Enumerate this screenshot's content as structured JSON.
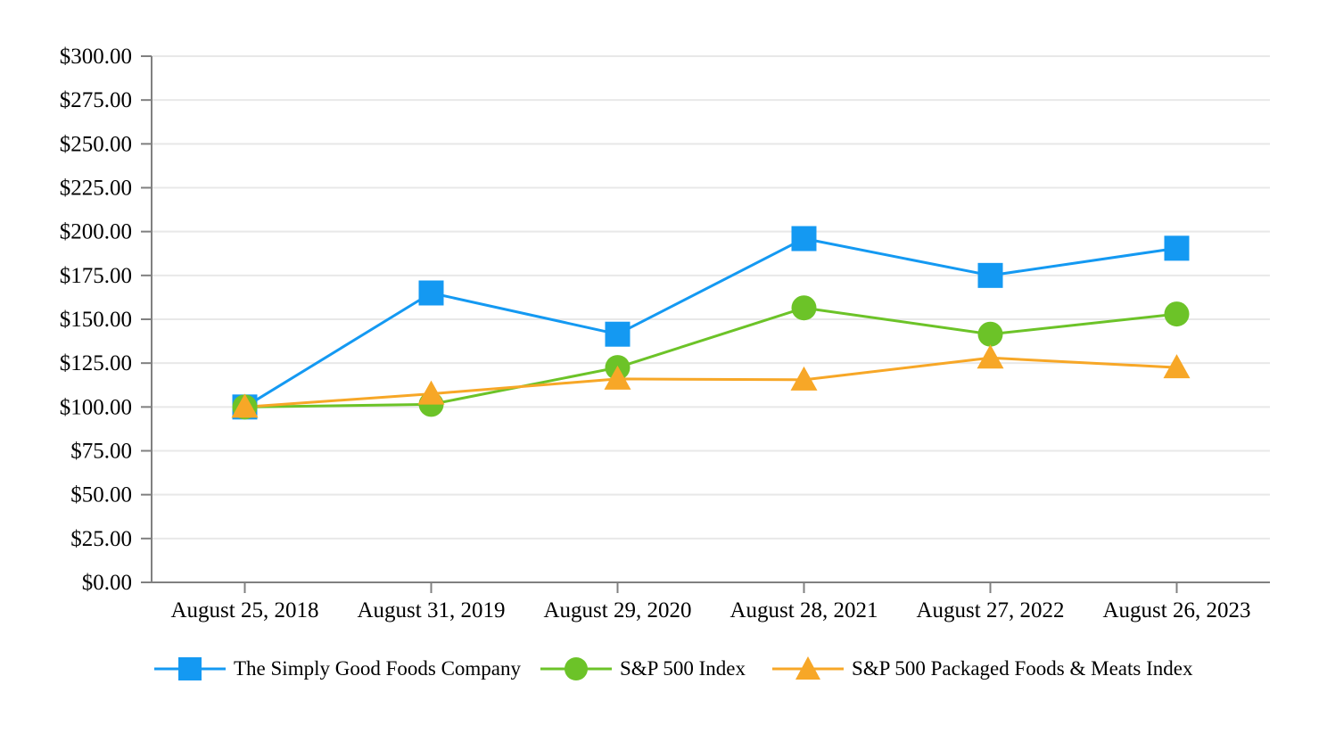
{
  "chart_data": {
    "type": "line",
    "title": "",
    "categories": [
      "August 25, 2018",
      "August 31, 2019",
      "August 29, 2020",
      "August 28, 2021",
      "August 27, 2022",
      "August 26, 2023"
    ],
    "series": [
      {
        "name": "The Simply Good Foods Company",
        "marker": "square",
        "color": "#1499F2",
        "values": [
          100.0,
          165.0,
          141.5,
          196.0,
          175.0,
          190.5
        ]
      },
      {
        "name": "S&P 500 Index",
        "marker": "circle",
        "color": "#6CC328",
        "values": [
          100.0,
          101.5,
          122.5,
          156.5,
          141.5,
          153.0
        ]
      },
      {
        "name": "S&P 500 Packaged Foods & Meats Index",
        "marker": "triangle",
        "color": "#F7A727",
        "values": [
          100.0,
          107.5,
          116.0,
          115.5,
          128.0,
          122.5
        ]
      }
    ],
    "y_axis": {
      "min": 0,
      "max": 300,
      "step": 25,
      "tick_labels": [
        "$300.00",
        "$275.00",
        "$250.00",
        "$225.00",
        "$200.00",
        "$175.00",
        "$150.00",
        "$125.00",
        "$100.00",
        "$75.00",
        "$50.00",
        "$25.00",
        "$0.00"
      ]
    },
    "grid": true,
    "legend_position": "bottom",
    "axis_color": "#808080",
    "grid_color": "#E8E8E8"
  }
}
